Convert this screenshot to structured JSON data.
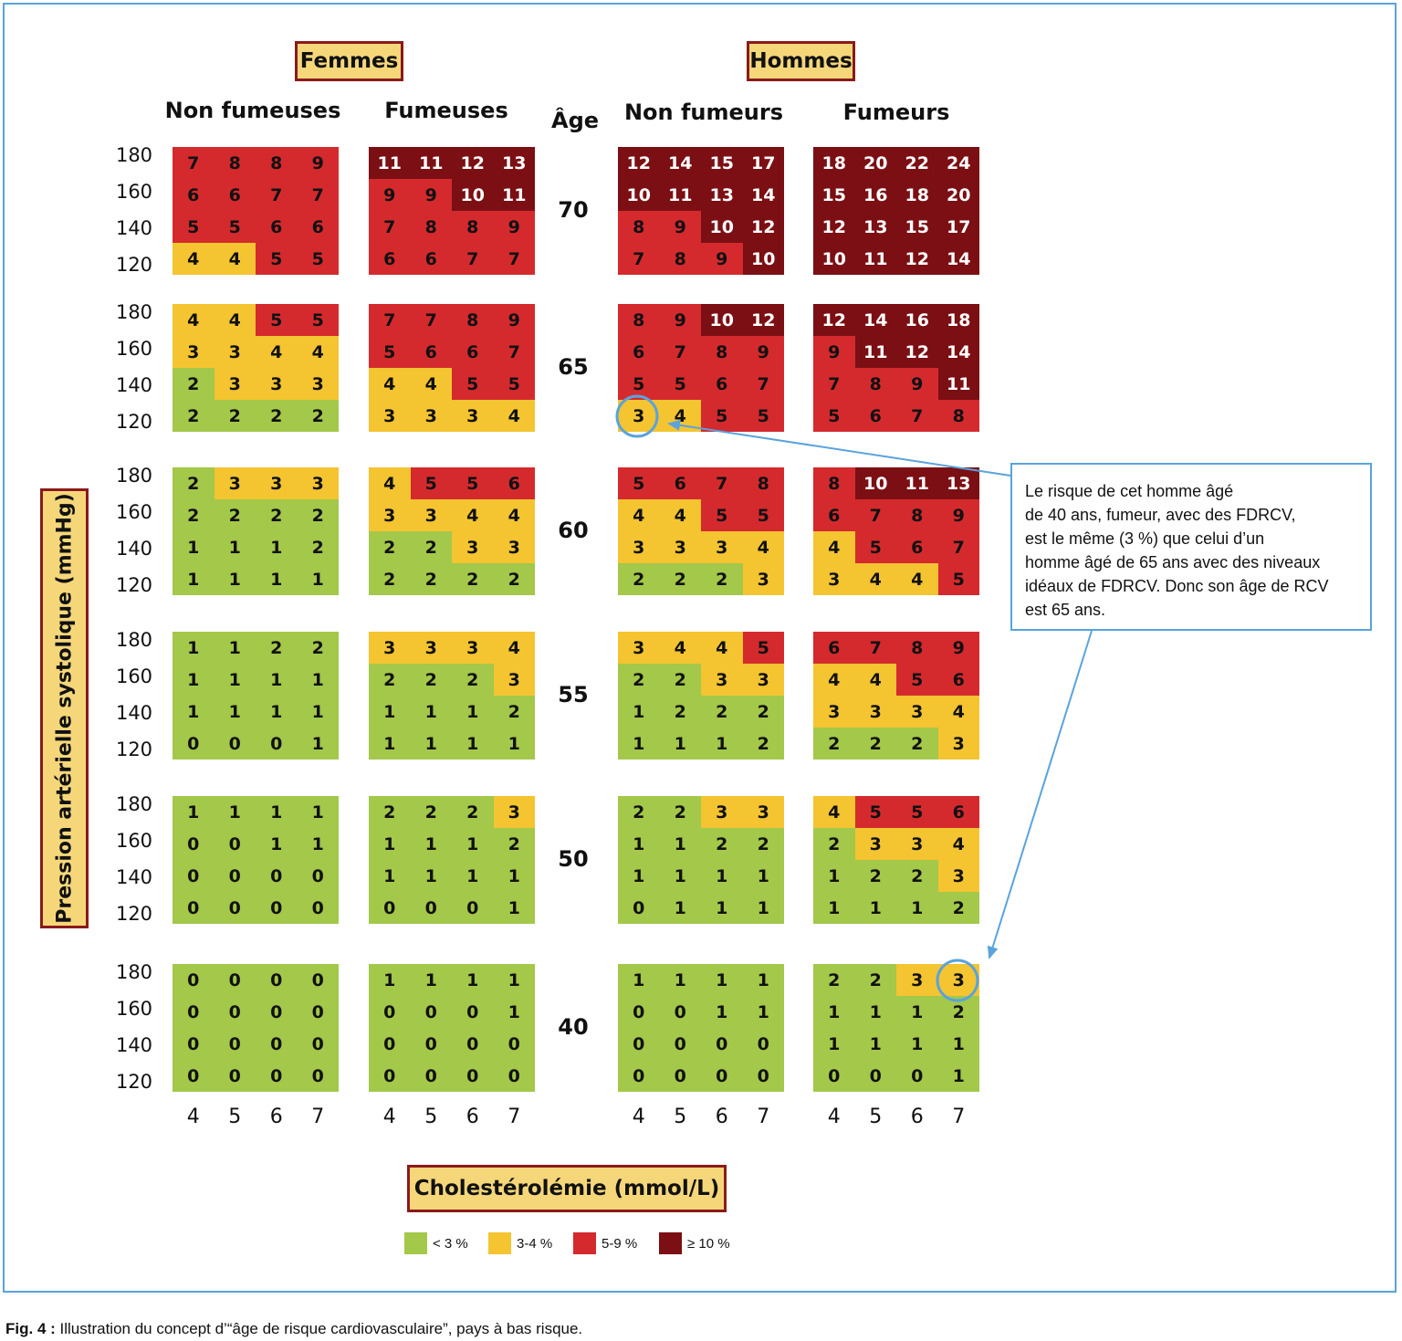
{
  "legend": [
    {
      "label": "< 3 %",
      "color": "#a3c84a"
    },
    {
      "label": "3-4 %",
      "color": "#f4c431"
    },
    {
      "label": "5-9 %",
      "color": "#d42a2e"
    },
    {
      "label": "≥ 10 %",
      "color": "#7b0f13"
    }
  ],
  "annotation": {
    "lines": [
      "Le risque de cet homme âgé",
      "de 40 ans, fumeur, avec des FDRCV,",
      "est le même (3 %) que celui d’un",
      "homme âgé de 65 ans avec des niveaux",
      "idéaux de FDRCV. Donc son âge de RCV",
      "est 65 ans."
    ]
  },
  "caption": {
    "label": "Fig. 4 :",
    "text": " Illustration du concept d’“âge de risque cardiovasculaire”, pays à bas risque."
  },
  "chart_data": {
    "type": "heatmap",
    "sex_labels": [
      "Femmes",
      "Hommes"
    ],
    "group_labels": [
      "Non fumeuses",
      "Fumeuses",
      "Non fumeurs",
      "Fumeurs"
    ],
    "age_header": "Âge",
    "ages": [
      "70",
      "65",
      "60",
      "55",
      "50",
      "40"
    ],
    "sbp_values": [
      "180",
      "160",
      "140",
      "120"
    ],
    "cholesterol_values": [
      "4",
      "5",
      "6",
      "7"
    ],
    "ylabel": "Pression artérielle systolique (mmHg)",
    "xlabel": "Cholestérolémie (mmol/L)",
    "risk_categories": [
      "< 3 %",
      "3-4 %",
      "5-9 %",
      "≥ 10 %"
    ],
    "panels": {
      "femmes_non_fumeuses": {
        "70": [
          [
            7,
            8,
            8,
            9
          ],
          [
            6,
            6,
            7,
            7
          ],
          [
            5,
            5,
            6,
            6
          ],
          [
            4,
            4,
            5,
            5
          ]
        ],
        "65": [
          [
            4,
            4,
            5,
            5
          ],
          [
            3,
            3,
            4,
            4
          ],
          [
            2,
            3,
            3,
            3
          ],
          [
            2,
            2,
            2,
            2
          ]
        ],
        "60": [
          [
            2,
            3,
            3,
            3
          ],
          [
            2,
            2,
            2,
            2
          ],
          [
            1,
            1,
            1,
            2
          ],
          [
            1,
            1,
            1,
            1
          ]
        ],
        "55": [
          [
            1,
            1,
            2,
            2
          ],
          [
            1,
            1,
            1,
            1
          ],
          [
            1,
            1,
            1,
            1
          ],
          [
            0,
            0,
            0,
            1
          ]
        ],
        "50": [
          [
            1,
            1,
            1,
            1
          ],
          [
            0,
            0,
            1,
            1
          ],
          [
            0,
            0,
            0,
            0
          ],
          [
            0,
            0,
            0,
            0
          ]
        ],
        "40": [
          [
            0,
            0,
            0,
            0
          ],
          [
            0,
            0,
            0,
            0
          ],
          [
            0,
            0,
            0,
            0
          ],
          [
            0,
            0,
            0,
            0
          ]
        ]
      },
      "femmes_fumeuses": {
        "70": [
          [
            11,
            11,
            12,
            13
          ],
          [
            9,
            9,
            10,
            11
          ],
          [
            7,
            8,
            8,
            9
          ],
          [
            6,
            6,
            7,
            7
          ]
        ],
        "65": [
          [
            7,
            7,
            8,
            9
          ],
          [
            5,
            6,
            6,
            7
          ],
          [
            4,
            4,
            5,
            5
          ],
          [
            3,
            3,
            3,
            4
          ]
        ],
        "60": [
          [
            4,
            5,
            5,
            6
          ],
          [
            3,
            3,
            4,
            4
          ],
          [
            2,
            2,
            3,
            3
          ],
          [
            2,
            2,
            2,
            2
          ]
        ],
        "55": [
          [
            3,
            3,
            3,
            4
          ],
          [
            2,
            2,
            2,
            3
          ],
          [
            1,
            1,
            1,
            2
          ],
          [
            1,
            1,
            1,
            1
          ]
        ],
        "50": [
          [
            2,
            2,
            2,
            3
          ],
          [
            1,
            1,
            1,
            2
          ],
          [
            1,
            1,
            1,
            1
          ],
          [
            0,
            0,
            0,
            1
          ]
        ],
        "40": [
          [
            1,
            1,
            1,
            1
          ],
          [
            0,
            0,
            0,
            1
          ],
          [
            0,
            0,
            0,
            0
          ],
          [
            0,
            0,
            0,
            0
          ]
        ]
      },
      "hommes_non_fumeurs": {
        "70": [
          [
            12,
            14,
            15,
            17
          ],
          [
            10,
            11,
            13,
            14
          ],
          [
            8,
            9,
            10,
            12
          ],
          [
            7,
            8,
            9,
            10
          ]
        ],
        "65": [
          [
            8,
            9,
            10,
            12
          ],
          [
            6,
            7,
            8,
            9
          ],
          [
            5,
            5,
            6,
            7
          ],
          [
            3,
            4,
            5,
            5
          ]
        ],
        "60": [
          [
            5,
            6,
            7,
            8
          ],
          [
            4,
            4,
            5,
            5
          ],
          [
            3,
            3,
            3,
            4
          ],
          [
            2,
            2,
            2,
            3
          ]
        ],
        "55": [
          [
            3,
            4,
            4,
            5
          ],
          [
            2,
            2,
            3,
            3
          ],
          [
            1,
            2,
            2,
            2
          ],
          [
            1,
            1,
            1,
            2
          ]
        ],
        "50": [
          [
            2,
            2,
            3,
            3
          ],
          [
            1,
            1,
            2,
            2
          ],
          [
            1,
            1,
            1,
            1
          ],
          [
            0,
            1,
            1,
            1
          ]
        ],
        "40": [
          [
            1,
            1,
            1,
            1
          ],
          [
            0,
            0,
            1,
            1
          ],
          [
            0,
            0,
            0,
            0
          ],
          [
            0,
            0,
            0,
            0
          ]
        ]
      },
      "hommes_fumeurs": {
        "70": [
          [
            18,
            20,
            22,
            24
          ],
          [
            15,
            16,
            18,
            20
          ],
          [
            12,
            13,
            15,
            17
          ],
          [
            10,
            11,
            12,
            14
          ]
        ],
        "65": [
          [
            12,
            14,
            16,
            18
          ],
          [
            9,
            11,
            12,
            14
          ],
          [
            7,
            8,
            9,
            11
          ],
          [
            5,
            6,
            7,
            8
          ]
        ],
        "60": [
          [
            8,
            10,
            11,
            13
          ],
          [
            6,
            7,
            8,
            9
          ],
          [
            4,
            5,
            6,
            7
          ],
          [
            3,
            4,
            4,
            5
          ]
        ],
        "55": [
          [
            6,
            7,
            8,
            9
          ],
          [
            4,
            4,
            5,
            6
          ],
          [
            3,
            3,
            3,
            4
          ],
          [
            2,
            2,
            2,
            3
          ]
        ],
        "50": [
          [
            4,
            5,
            5,
            6
          ],
          [
            2,
            3,
            3,
            4
          ],
          [
            1,
            2,
            2,
            3
          ],
          [
            1,
            1,
            1,
            2
          ]
        ],
        "40": [
          [
            2,
            2,
            3,
            3
          ],
          [
            1,
            1,
            1,
            2
          ],
          [
            1,
            1,
            1,
            1
          ],
          [
            0,
            0,
            0,
            1
          ]
        ]
      }
    },
    "highlighted": [
      {
        "group": "Non fumeurs",
        "age": "65",
        "sbp": "120",
        "chol": "4",
        "value": 3
      },
      {
        "group": "Fumeurs",
        "age": "40",
        "sbp": "180",
        "chol": "7",
        "value": 3
      }
    ]
  }
}
